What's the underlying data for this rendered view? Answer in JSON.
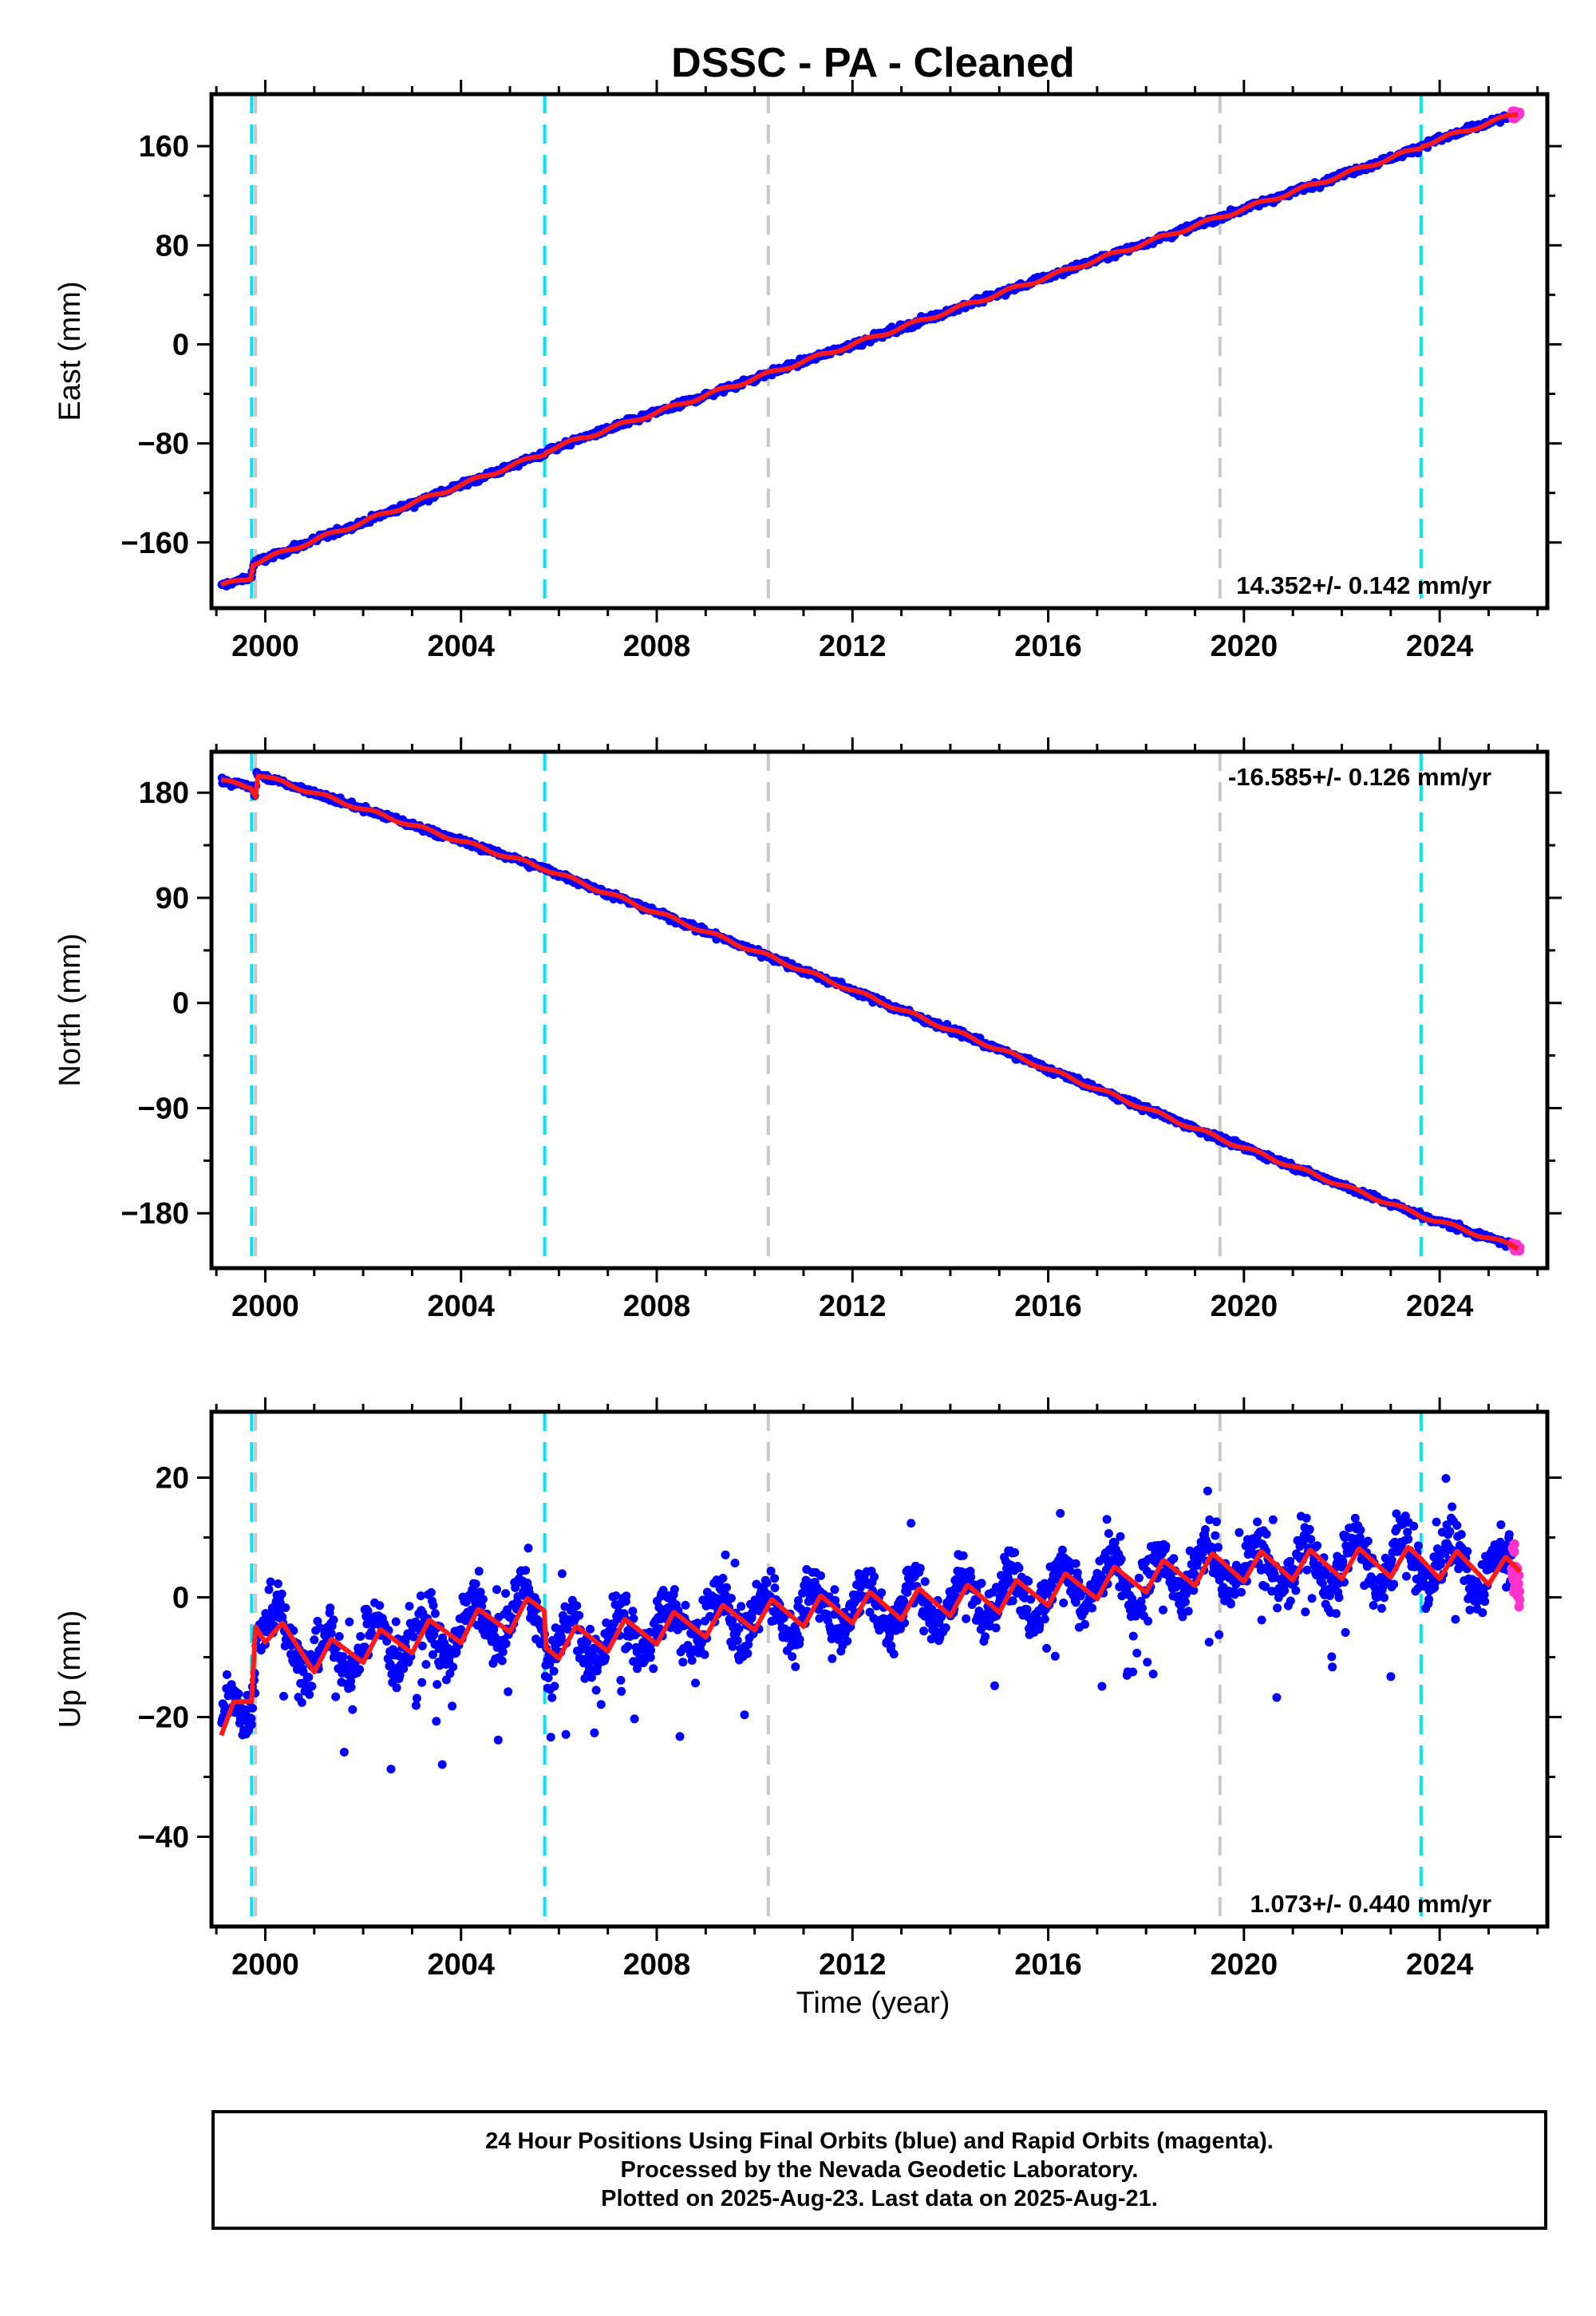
{
  "title": "DSSC  - PA - Cleaned",
  "xlabel": "Time (year)",
  "footer": [
    "24 Hour Positions Using Final Orbits (blue) and Rapid Orbits (magenta).",
    "Processed by the Nevada Geodetic Laboratory.",
    "Plotted on 2025-Aug-23. Last data on 2025-Aug-21."
  ],
  "colors": {
    "final_orbits": "#0000ff",
    "rapid_orbits": "#ff33cc",
    "model_fit": "#ff1a1a",
    "cyan_marker": "#00e5ff",
    "gray_marker": "#c8c8c8"
  },
  "chart_data": [
    {
      "type": "scatter",
      "ylabel": "East (mm)",
      "rate_label": "14.352+/- 0.142 mm/yr",
      "rate_position": "bottom-right",
      "xlim": [
        1998.9,
        2026.2
      ],
      "ylim": [
        -213,
        202
      ],
      "xticks": [
        2000,
        2004,
        2008,
        2012,
        2016,
        2020,
        2024
      ],
      "yticks": [
        160,
        80,
        0,
        -80,
        -160
      ],
      "cyan_lines": [
        1999.72,
        2005.71,
        2023.62
      ],
      "gray_lines": [
        1999.8,
        2010.28,
        2019.51
      ],
      "series": [
        {
          "name": "Final Orbits",
          "color": "#0000ff",
          "x_range": [
            1999.1,
            2025.47
          ]
        },
        {
          "name": "Rapid Orbits",
          "color": "#ff33cc",
          "x_range": [
            2025.47,
            2025.64
          ]
        }
      ],
      "model": {
        "x": [
          1999.1,
          1999.72,
          1999.75,
          2005.71,
          2005.73,
          2023.62,
          2023.64,
          2025.64
        ],
        "y": [
          -195,
          -188,
          -177,
          -88,
          -86,
          159,
          161,
          187
        ]
      }
    },
    {
      "type": "scatter",
      "ylabel": "North (mm)",
      "rate_label": "-16.585+/- 0.126 mm/yr",
      "rate_position": "top-right",
      "xlim": [
        1998.9,
        2026.2
      ],
      "ylim": [
        -227,
        215
      ],
      "xticks": [
        2000,
        2004,
        2008,
        2012,
        2016,
        2020,
        2024
      ],
      "yticks": [
        180,
        90,
        0,
        -90,
        -180
      ],
      "cyan_lines": [
        1999.72,
        2005.71,
        2023.62
      ],
      "gray_lines": [
        1999.8,
        2010.28,
        2019.51
      ],
      "series": [
        {
          "name": "Final Orbits",
          "color": "#0000ff",
          "x_range": [
            1999.1,
            2025.47
          ]
        },
        {
          "name": "Rapid Orbits",
          "color": "#ff33cc",
          "x_range": [
            2025.47,
            2025.64
          ]
        }
      ],
      "model": {
        "x": [
          1999.1,
          1999.72,
          1999.8,
          1999.82,
          2005.71,
          2010.28,
          2019.51,
          2023.62,
          2025.64
        ],
        "y": [
          190,
          185,
          178,
          196,
          115,
          40,
          -116,
          -182,
          -210
        ]
      }
    },
    {
      "type": "scatter",
      "ylabel": "Up (mm)",
      "rate_label": "1.073+/- 0.440 mm/yr",
      "rate_position": "bottom-right",
      "xlim": [
        1998.9,
        2026.2
      ],
      "ylim": [
        -55,
        31
      ],
      "xticks": [
        2000,
        2004,
        2008,
        2012,
        2016,
        2020,
        2024
      ],
      "yticks": [
        20,
        0,
        -20,
        -40
      ],
      "cyan_lines": [
        1999.72,
        2005.71,
        2023.62
      ],
      "gray_lines": [
        1999.8,
        2010.28,
        2019.51
      ],
      "series": [
        {
          "name": "Final Orbits",
          "color": "#0000ff",
          "x_range": [
            1999.1,
            2025.47
          ]
        },
        {
          "name": "Rapid Orbits",
          "color": "#ff33cc",
          "x_range": [
            2025.47,
            2025.64
          ]
        }
      ],
      "model": {
        "x": [
          1999.1,
          1999.72,
          1999.8,
          2001.0,
          2003.5,
          2005.71,
          2005.73,
          2010.0,
          2015.0,
          2019.5,
          2023.6,
          2025.64
        ],
        "y": [
          -22,
          -17,
          -4,
          -10,
          -6,
          -2,
          -8,
          -3,
          0,
          5,
          6,
          4
        ]
      }
    }
  ]
}
